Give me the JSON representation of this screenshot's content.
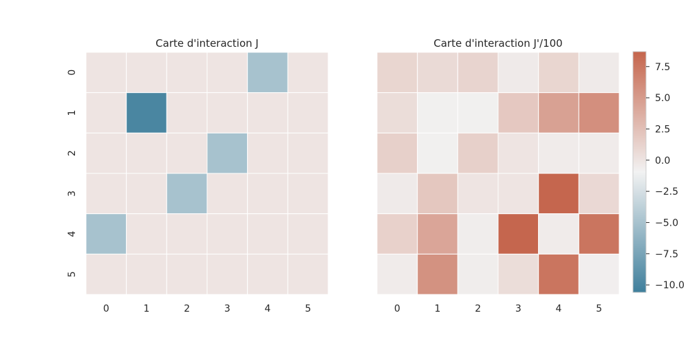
{
  "chart_data": [
    {
      "type": "heatmap",
      "title": "Carte d'interaction J",
      "x_ticks": [
        "0",
        "1",
        "2",
        "3",
        "4",
        "5"
      ],
      "y_ticks": [
        "0",
        "1",
        "2",
        "3",
        "4",
        "5"
      ],
      "values": [
        [
          0,
          0,
          0,
          0,
          -5,
          0
        ],
        [
          0,
          -10,
          0,
          0,
          0,
          0
        ],
        [
          0,
          0,
          0,
          -5,
          0,
          0
        ],
        [
          0,
          0,
          -5,
          0,
          0,
          0
        ],
        [
          -5,
          0,
          0,
          0,
          0,
          0
        ],
        [
          0,
          0,
          0,
          0,
          0,
          0
        ]
      ],
      "grid": false
    },
    {
      "type": "heatmap",
      "title": "Carte d'interaction J'/100",
      "x_ticks": [
        "0",
        "1",
        "2",
        "3",
        "4",
        "5"
      ],
      "y_ticks": [],
      "values": [
        [
          1.0,
          0.7,
          1.1,
          -0.4,
          1.0,
          -0.4
        ],
        [
          0.5,
          -0.8,
          -0.8,
          1.9,
          4.6,
          5.8
        ],
        [
          1.4,
          -0.8,
          1.4,
          0.0,
          -0.5,
          -0.5
        ],
        [
          -0.4,
          2.0,
          0.0,
          0.0,
          8.6,
          0.8
        ],
        [
          1.3,
          4.3,
          -0.6,
          8.6,
          -0.5,
          7.6
        ],
        [
          -0.5,
          5.6,
          -0.6,
          0.5,
          7.6,
          -0.7
        ]
      ],
      "grid": false
    }
  ],
  "colorbar": {
    "min": -10.6,
    "max": 8.7,
    "ticks": [
      -10.0,
      -7.5,
      -5.0,
      -2.5,
      0.0,
      2.5,
      5.0,
      7.5
    ],
    "tick_labels": [
      "−10.0",
      "−7.5",
      "−5.0",
      "−2.5",
      "0.0",
      "2.5",
      "5.0",
      "7.5"
    ],
    "palette": [
      "#3f7f9c",
      "#f2f2f2",
      "#c5654c"
    ],
    "placement": "right"
  }
}
